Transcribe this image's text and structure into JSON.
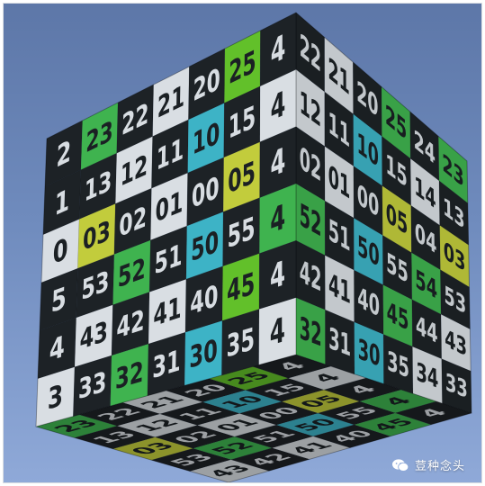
{
  "cube": {
    "front_face": {
      "cells": [
        [
          {
            "label": "2",
            "color": "black"
          },
          {
            "label": "23",
            "color": "green"
          },
          {
            "label": "22",
            "color": "black"
          },
          {
            "label": "21",
            "color": "white"
          },
          {
            "label": "20",
            "color": "black"
          },
          {
            "label": "25",
            "color": "lime"
          },
          {
            "label": "4",
            "color": "black"
          }
        ],
        [
          {
            "label": "1",
            "color": "black"
          },
          {
            "label": "13",
            "color": "black"
          },
          {
            "label": "12",
            "color": "white"
          },
          {
            "label": "11",
            "color": "black"
          },
          {
            "label": "10",
            "color": "cyan"
          },
          {
            "label": "15",
            "color": "black"
          },
          {
            "label": "4",
            "color": "white"
          }
        ],
        [
          {
            "label": "0",
            "color": "white"
          },
          {
            "label": "03",
            "color": "yellow"
          },
          {
            "label": "02",
            "color": "black"
          },
          {
            "label": "01",
            "color": "white"
          },
          {
            "label": "00",
            "color": "black"
          },
          {
            "label": "05",
            "color": "yellow"
          },
          {
            "label": "4",
            "color": "black"
          }
        ],
        [
          {
            "label": "5",
            "color": "black"
          },
          {
            "label": "53",
            "color": "black"
          },
          {
            "label": "52",
            "color": "green"
          },
          {
            "label": "51",
            "color": "black"
          },
          {
            "label": "50",
            "color": "cyan"
          },
          {
            "label": "55",
            "color": "black"
          },
          {
            "label": "4",
            "color": "green"
          }
        ],
        [
          {
            "label": "4",
            "color": "black"
          },
          {
            "label": "43",
            "color": "white"
          },
          {
            "label": "42",
            "color": "black"
          },
          {
            "label": "41",
            "color": "white"
          },
          {
            "label": "40",
            "color": "black"
          },
          {
            "label": "45",
            "color": "lime"
          },
          {
            "label": "4",
            "color": "black"
          }
        ],
        [
          {
            "label": "3",
            "color": "white"
          },
          {
            "label": "33",
            "color": "black"
          },
          {
            "label": "32",
            "color": "green"
          },
          {
            "label": "31",
            "color": "black"
          },
          {
            "label": "30",
            "color": "cyan"
          },
          {
            "label": "35",
            "color": "black"
          },
          {
            "label": "4",
            "color": "white"
          }
        ]
      ]
    },
    "right_face": {
      "cells": [
        [
          {
            "label": "22",
            "color": "black"
          },
          {
            "label": "21",
            "color": "white"
          },
          {
            "label": "20",
            "color": "black"
          },
          {
            "label": "25",
            "color": "green"
          },
          {
            "label": "24",
            "color": "black"
          },
          {
            "label": "23",
            "color": "green"
          }
        ],
        [
          {
            "label": "12",
            "color": "white"
          },
          {
            "label": "11",
            "color": "black"
          },
          {
            "label": "10",
            "color": "cyan"
          },
          {
            "label": "15",
            "color": "black"
          },
          {
            "label": "14",
            "color": "white"
          },
          {
            "label": "13",
            "color": "black"
          }
        ],
        [
          {
            "label": "02",
            "color": "black"
          },
          {
            "label": "01",
            "color": "white"
          },
          {
            "label": "00",
            "color": "black"
          },
          {
            "label": "05",
            "color": "yellow"
          },
          {
            "label": "04",
            "color": "black"
          },
          {
            "label": "03",
            "color": "yellow"
          }
        ],
        [
          {
            "label": "52",
            "color": "green"
          },
          {
            "label": "51",
            "color": "black"
          },
          {
            "label": "50",
            "color": "cyan"
          },
          {
            "label": "55",
            "color": "black"
          },
          {
            "label": "54",
            "color": "green"
          },
          {
            "label": "53",
            "color": "black"
          }
        ],
        [
          {
            "label": "42",
            "color": "black"
          },
          {
            "label": "41",
            "color": "white"
          },
          {
            "label": "40",
            "color": "black"
          },
          {
            "label": "45",
            "color": "green"
          },
          {
            "label": "44",
            "color": "black"
          },
          {
            "label": "43",
            "color": "white"
          }
        ],
        [
          {
            "label": "32",
            "color": "green"
          },
          {
            "label": "31",
            "color": "black"
          },
          {
            "label": "30",
            "color": "cyan"
          },
          {
            "label": "35",
            "color": "black"
          },
          {
            "label": "34",
            "color": "white"
          },
          {
            "label": "33",
            "color": "black"
          }
        ]
      ]
    },
    "bottom_face": {
      "cells": [
        [
          {
            "label": "23",
            "color": "green"
          },
          {
            "label": "22",
            "color": "black"
          },
          {
            "label": "21",
            "color": "white"
          },
          {
            "label": "20",
            "color": "black"
          },
          {
            "label": "25",
            "color": "lime"
          },
          {
            "label": "4",
            "color": "black"
          }
        ],
        [
          {
            "label": "13",
            "color": "black"
          },
          {
            "label": "12",
            "color": "white"
          },
          {
            "label": "11",
            "color": "black"
          },
          {
            "label": "10",
            "color": "cyan"
          },
          {
            "label": "15",
            "color": "black"
          },
          {
            "label": "4",
            "color": "white"
          }
        ],
        [
          {
            "label": "03",
            "color": "yellow"
          },
          {
            "label": "02",
            "color": "black"
          },
          {
            "label": "01",
            "color": "white"
          },
          {
            "label": "00",
            "color": "black"
          },
          {
            "label": "05",
            "color": "yellow"
          },
          {
            "label": "4",
            "color": "black"
          }
        ],
        [
          {
            "label": "53",
            "color": "black"
          },
          {
            "label": "52",
            "color": "green"
          },
          {
            "label": "51",
            "color": "black"
          },
          {
            "label": "50",
            "color": "cyan"
          },
          {
            "label": "55",
            "color": "black"
          },
          {
            "label": "4",
            "color": "green"
          }
        ],
        [
          {
            "label": "43",
            "color": "white"
          },
          {
            "label": "42",
            "color": "black"
          },
          {
            "label": "41",
            "color": "white"
          },
          {
            "label": "40",
            "color": "black"
          },
          {
            "label": "45",
            "color": "green"
          },
          {
            "label": "4",
            "color": "black"
          }
        ]
      ]
    }
  },
  "palette": {
    "black": "#1d2226",
    "white": "#d9dee3",
    "green": "#3fb34f",
    "lime": "#62c02a",
    "yellow": "#c2cc3c",
    "cyan": "#3db3c6"
  },
  "watermark": {
    "icon": "wechat-icon",
    "text": "荳种念头"
  }
}
